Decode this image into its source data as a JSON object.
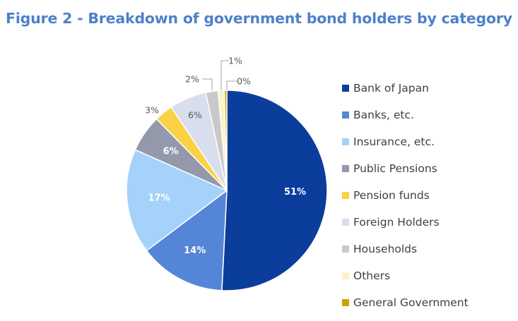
{
  "chart_data": {
    "type": "pie",
    "title": "Figure 2 - Breakdown of government bond holders by category",
    "legend_position": "right",
    "slices": [
      {
        "label": "Bank of Japan",
        "value": 51,
        "display": "51%",
        "color": "#0b3d9c",
        "label_color": "#ffffff"
      },
      {
        "label": "Banks, etc.",
        "value": 14,
        "display": "14%",
        "color": "#5585d6",
        "label_color": "#ffffff"
      },
      {
        "label": "Insurance, etc.",
        "value": 17,
        "display": "17%",
        "color": "#a4d2fa",
        "label_color": "#ffffff"
      },
      {
        "label": "Public Pensions",
        "value": 6,
        "display": "6%",
        "color": "#9399ab",
        "label_color": "#ffffff"
      },
      {
        "label": "Pension funds",
        "value": 3,
        "display": "3%",
        "color": "#fbd245",
        "label_color": "#595959"
      },
      {
        "label": "Foreign Holders",
        "value": 6,
        "display": "6%",
        "color": "#d8deeb",
        "label_color": "#595959"
      },
      {
        "label": "Households",
        "value": 2,
        "display": "2%",
        "color": "#c9c9c9",
        "label_color": "#595959"
      },
      {
        "label": "Others",
        "value": 1,
        "display": "1%",
        "color": "#fff2c6",
        "label_color": "#595959"
      },
      {
        "label": "General Government",
        "value": 0.4,
        "display": "0%",
        "color": "#d4a000",
        "label_color": "#595959"
      }
    ]
  }
}
